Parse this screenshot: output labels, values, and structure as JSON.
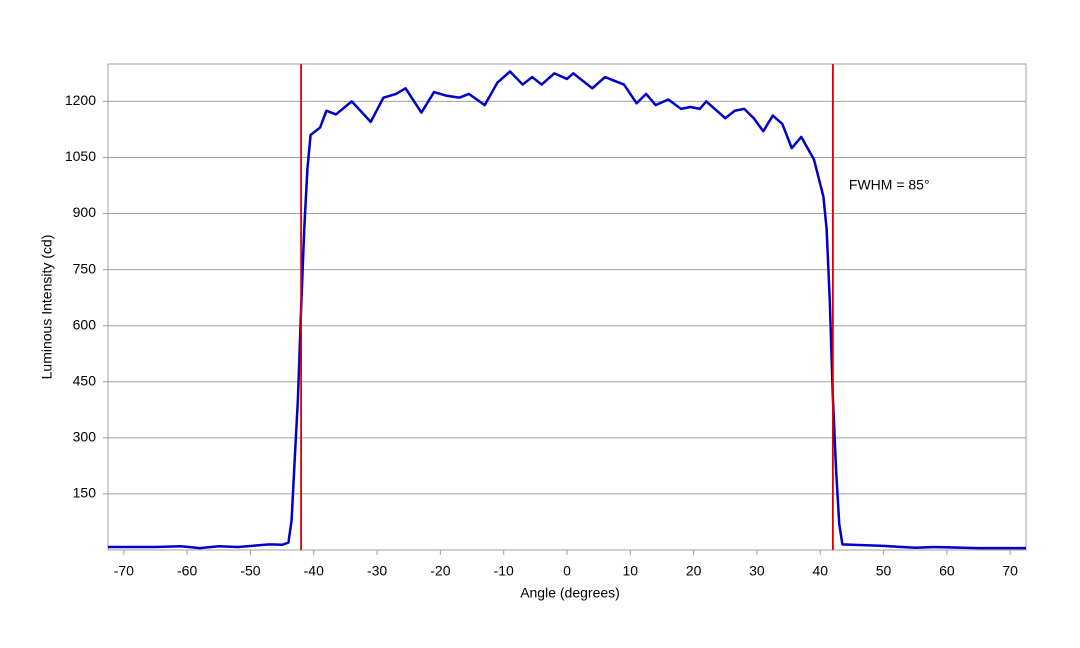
{
  "chart_data": {
    "type": "line",
    "xlabel": "Angle (degrees)",
    "ylabel": "Luminous Intensity (cd)",
    "annotation": "FWHM = 85°",
    "x": [
      -72.5,
      -70,
      -65,
      -61,
      -58,
      -55,
      -52,
      -47,
      -45,
      -44,
      -43.5,
      -43,
      -42.5,
      -42,
      -41.5,
      -41,
      -40.5,
      -39,
      -38,
      -36.5,
      -34,
      -31,
      -29,
      -27,
      -25.5,
      -23,
      -21,
      -19,
      -17,
      -15.5,
      -13,
      -11,
      -9,
      -7,
      -5.5,
      -4,
      -2,
      0,
      1,
      4,
      6,
      9,
      11,
      12.5,
      14,
      16,
      18,
      19.5,
      21,
      22,
      25,
      26.5,
      28,
      29.5,
      31,
      32.5,
      34,
      35.5,
      37,
      39,
      40.5,
      41,
      41.5,
      42,
      42.5,
      43,
      43.5,
      45,
      50,
      55,
      58,
      65,
      72.5
    ],
    "series": [
      {
        "color": "#0000cc",
        "values": [
          8,
          8,
          8,
          10,
          5,
          10,
          8,
          15,
          14,
          20,
          80,
          245,
          405,
          645,
          860,
          1020,
          1110,
          1130,
          1175,
          1165,
          1200,
          1145,
          1210,
          1220,
          1235,
          1170,
          1225,
          1215,
          1210,
          1220,
          1190,
          1250,
          1280,
          1245,
          1265,
          1245,
          1275,
          1260,
          1275,
          1235,
          1265,
          1245,
          1195,
          1220,
          1190,
          1205,
          1180,
          1185,
          1180,
          1200,
          1155,
          1175,
          1180,
          1155,
          1120,
          1162,
          1140,
          1075,
          1105,
          1045,
          945,
          860,
          670,
          405,
          215,
          70,
          15,
          14,
          11,
          6,
          8,
          5,
          5
        ]
      }
    ],
    "vlines": [
      -42,
      42
    ],
    "vline_color": "#dd0000",
    "xlim": [
      -72.5,
      72.5
    ],
    "xticks": [
      -70,
      -60,
      -50,
      -40,
      -30,
      -20,
      -10,
      0,
      10,
      20,
      30,
      40,
      50,
      60,
      70
    ],
    "ylim": [
      0,
      1300
    ],
    "yticks": [
      150,
      300,
      450,
      600,
      750,
      900,
      1050,
      1200
    ],
    "grid": true
  }
}
